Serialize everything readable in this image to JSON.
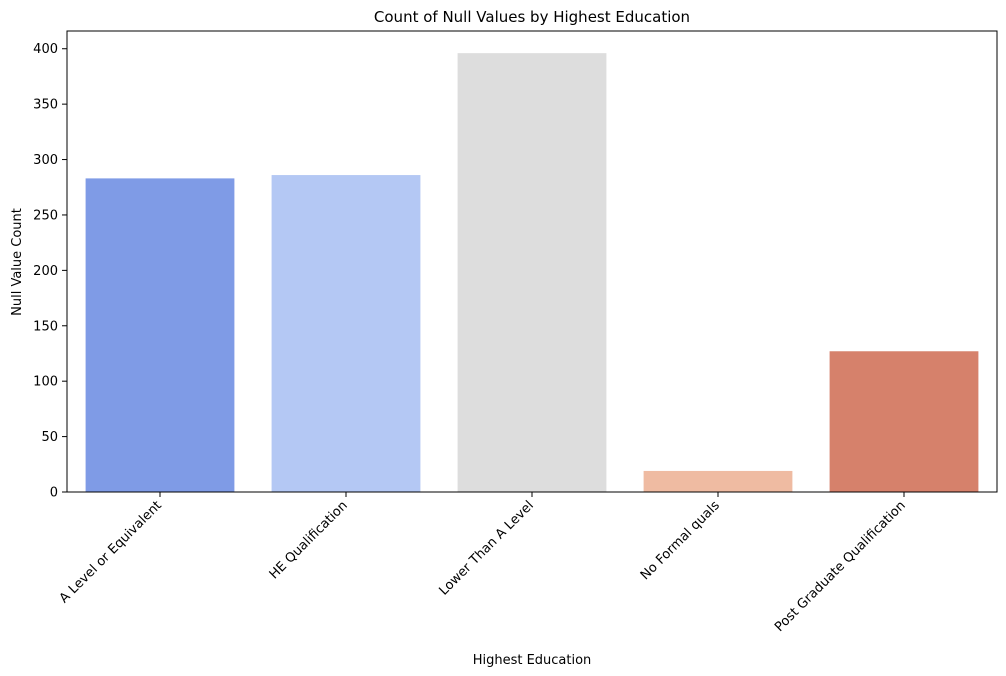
{
  "chart_data": {
    "type": "bar",
    "title": "Count of Null Values by Highest Education",
    "xlabel": "Highest Education",
    "ylabel": "Null Value Count",
    "categories": [
      "A Level or Equivalent",
      "HE Qualification",
      "Lower Than A Level",
      "No Formal quals",
      "Post Graduate Qualification"
    ],
    "values": [
      283,
      286,
      396,
      19,
      127
    ],
    "colors": [
      "#7f9be6",
      "#b4c8f4",
      "#dddddd",
      "#efbba2",
      "#d6816b"
    ],
    "ylim": [
      0,
      416
    ],
    "yticks": [
      0,
      50,
      100,
      150,
      200,
      250,
      300,
      350,
      400
    ],
    "grid": false,
    "legend": "none"
  }
}
